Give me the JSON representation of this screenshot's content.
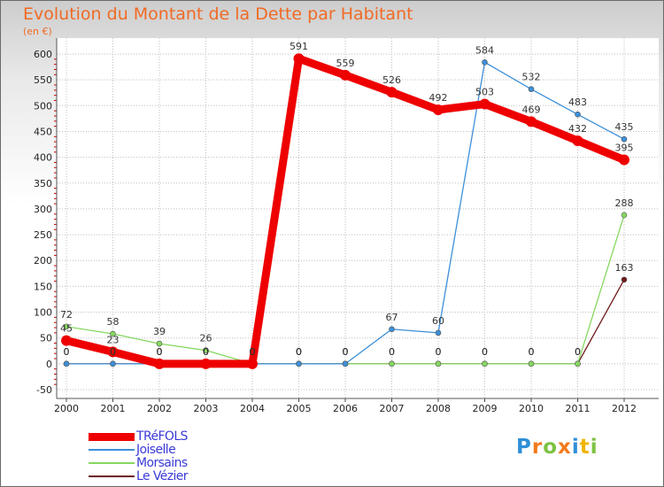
{
  "chart_data": {
    "type": "line",
    "title": "Evolution du Montant de la Dette par Habitant",
    "ylabel": "(en €)",
    "xlabel": "",
    "ylim": [
      -50,
      600
    ],
    "yticks": [
      -50,
      0,
      50,
      100,
      150,
      200,
      250,
      300,
      350,
      400,
      450,
      500,
      550,
      600
    ],
    "categories": [
      "2000",
      "2001",
      "2002",
      "2003",
      "2004",
      "2005",
      "2006",
      "2007",
      "2008",
      "2009",
      "2010",
      "2011",
      "2012"
    ],
    "series": [
      {
        "name": "TRéFOLS",
        "color": "#ee0000",
        "values": [
          45,
          23,
          0,
          0,
          0,
          591,
          559,
          526,
          492,
          503,
          469,
          432,
          395
        ],
        "labels": [
          "45",
          "23",
          "0",
          "0",
          "0",
          "591",
          "559",
          "526",
          "492",
          "503",
          "469",
          "432",
          "395"
        ]
      },
      {
        "name": "Joiselle",
        "color": "#3d8fd8",
        "values": [
          0,
          0,
          0,
          0,
          0,
          0,
          0,
          67,
          60,
          584,
          532,
          483,
          435
        ],
        "labels": [
          "0",
          "0",
          "0",
          "0",
          "0",
          "0",
          "0",
          "67",
          "60",
          "584",
          "532",
          "483",
          "435"
        ]
      },
      {
        "name": "Morsains",
        "color": "#86d860",
        "values": [
          72,
          58,
          39,
          26,
          0,
          0,
          0,
          0,
          0,
          0,
          0,
          0,
          288
        ],
        "labels": [
          "72",
          "58",
          "39",
          "26",
          "0",
          "0",
          "0",
          "0",
          "0",
          "0",
          "0",
          "0",
          "288"
        ]
      },
      {
        "name": "Le Vézier",
        "color": "#6e1a1a",
        "values": [
          0,
          0,
          0,
          0,
          0,
          0,
          0,
          0,
          0,
          0,
          0,
          0,
          163
        ],
        "labels": [
          "0",
          "0",
          "0",
          "0",
          "0",
          "0",
          "0",
          "0",
          "0",
          "0",
          "0",
          "0",
          "163"
        ]
      }
    ]
  },
  "logo": {
    "letters": [
      "P",
      "r",
      "o",
      "x",
      "i",
      "t",
      "i"
    ],
    "colors": [
      "#2f8fd8",
      "#f27a1d",
      "#7dc242",
      "#f27a1d",
      "#2f8fd8",
      "#f0b400",
      "#7dc242"
    ]
  }
}
